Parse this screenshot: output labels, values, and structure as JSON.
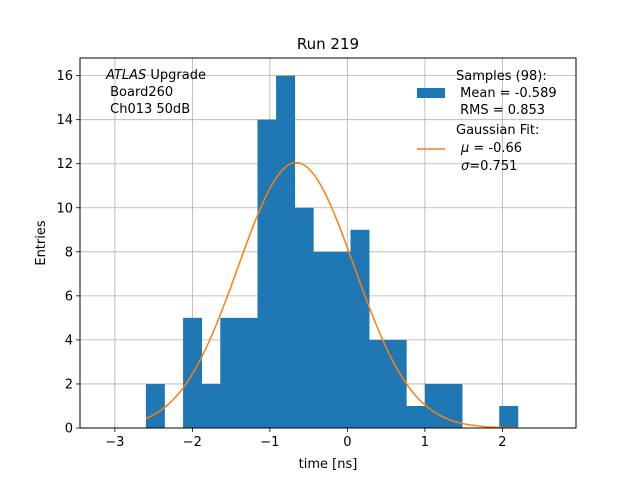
{
  "chart_data": {
    "type": "bar",
    "title": "Run 219",
    "xlabel": "time [ns]",
    "ylabel": "Entries",
    "xlim": [
      -3.45,
      2.95
    ],
    "ylim": [
      0,
      16.8
    ],
    "xticks": [
      -3,
      -2,
      -1,
      0,
      1,
      2
    ],
    "xtick_labels": [
      "−3",
      "−2",
      "−1",
      "0",
      "1",
      "2"
    ],
    "yticks": [
      0,
      2,
      4,
      6,
      8,
      10,
      12,
      14,
      16
    ],
    "ytick_labels": [
      "0",
      "2",
      "4",
      "6",
      "8",
      "10",
      "12",
      "14",
      "16"
    ],
    "grid": true,
    "legend_position": "top-right",
    "bar_color": "#1f77b4",
    "fit_color": "#ff7f0e",
    "histogram": {
      "name": "Samples (98):",
      "bin_edges": [
        -2.6,
        -2.36,
        -2.12,
        -1.88,
        -1.64,
        -1.4,
        -1.16,
        -0.92,
        -0.68,
        -0.44,
        -0.2,
        0.04,
        0.28,
        0.52,
        0.76,
        1.0,
        1.24,
        1.48,
        1.72,
        1.96,
        2.2
      ],
      "counts": [
        2,
        0,
        5,
        2,
        5,
        5,
        14,
        16,
        10,
        8,
        8,
        9,
        4,
        4,
        1,
        2,
        2,
        0,
        0,
        1
      ]
    },
    "gaussian_fit": {
      "name": "Gaussian Fit:",
      "amplitude": 12.05,
      "mu": -0.66,
      "sigma": 0.751,
      "x_range": [
        -2.6,
        2.2
      ]
    },
    "legend": {
      "samples_title": "Samples (98):",
      "samples_mean": " Mean = -0.589",
      "samples_rms": " RMS = 0.853",
      "fit_title": "Gaussian Fit:",
      "fit_mu_symbol": "μ",
      "fit_mu_value": " = -0.66",
      "fit_sigma_symbol": "σ",
      "fit_sigma_value": "=0.751"
    },
    "annotation": {
      "line1_italic": "ATLAS",
      "line1_rest": " Upgrade",
      "line2": " Board260",
      "line3": " Ch013 50dB"
    }
  }
}
